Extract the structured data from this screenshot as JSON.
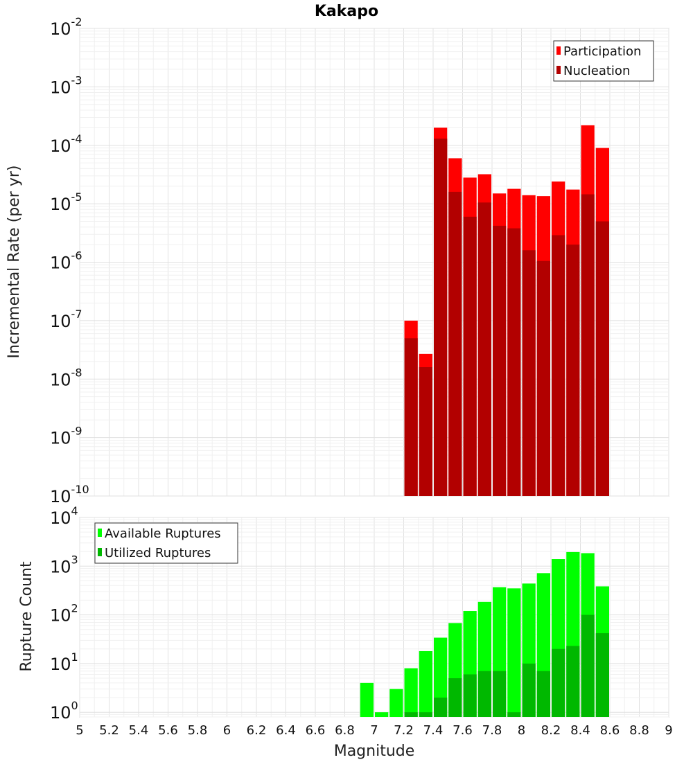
{
  "chart_data": [
    {
      "type": "bar",
      "title": "Kakapo",
      "ylabel": "Incremental Rate (per yr)",
      "xlabel": "",
      "y_scale": "log",
      "ylim": [
        1e-10,
        0.01
      ],
      "xlim": [
        5,
        9
      ],
      "grid": true,
      "legend_placement": "top-right",
      "bar_layout": "overlaid",
      "x": [
        7.25,
        7.35,
        7.45,
        7.55,
        7.65,
        7.75,
        7.85,
        7.95,
        8.05,
        8.15,
        8.25,
        8.35,
        8.45,
        8.55
      ],
      "series": [
        {
          "name": "Participation",
          "color": "#ff0000",
          "values": [
            1e-07,
            2.7e-08,
            0.0002,
            6e-05,
            2.8e-05,
            3.2e-05,
            1.5e-05,
            1.8e-05,
            1.4e-05,
            1.35e-05,
            2.4e-05,
            1.75e-05,
            0.00022,
            9e-05
          ]
        },
        {
          "name": "Nucleation",
          "color": "#b20000",
          "values": [
            5e-08,
            1.6e-08,
            0.00013,
            1.6e-05,
            6e-06,
            1.05e-05,
            4.2e-06,
            3.8e-06,
            1.6e-06,
            1.05e-06,
            2.9e-06,
            2e-06,
            1.45e-05,
            5e-06
          ]
        }
      ],
      "yticks": [
        {
          "base": "10",
          "exp": "-10"
        },
        {
          "base": "10",
          "exp": "-9"
        },
        {
          "base": "10",
          "exp": "-8"
        },
        {
          "base": "10",
          "exp": "-7"
        },
        {
          "base": "10",
          "exp": "-6"
        },
        {
          "base": "10",
          "exp": "-5"
        },
        {
          "base": "10",
          "exp": "-4"
        },
        {
          "base": "10",
          "exp": "-3"
        },
        {
          "base": "10",
          "exp": "-2"
        }
      ]
    },
    {
      "type": "bar",
      "title": "",
      "ylabel": "Rupture Count",
      "xlabel": "Magnitude",
      "y_scale": "log",
      "ylim": [
        0.8,
        10000
      ],
      "xlim": [
        5,
        9
      ],
      "grid": true,
      "legend_placement": "top-left",
      "bar_layout": "overlaid",
      "x": [
        6.95,
        7.05,
        7.15,
        7.25,
        7.35,
        7.45,
        7.55,
        7.65,
        7.75,
        7.85,
        7.95,
        8.05,
        8.15,
        8.25,
        8.35,
        8.45,
        8.55
      ],
      "series": [
        {
          "name": "Available Ruptures",
          "color": "#00ff00",
          "values": [
            4,
            1,
            3,
            8,
            18,
            34,
            68,
            120,
            185,
            370,
            350,
            440,
            720,
            1400,
            1950,
            1850,
            385
          ]
        },
        {
          "name": "Utilized Ruptures",
          "color": "#00b800",
          "values": [
            0,
            0,
            0,
            1,
            1,
            2,
            5,
            6,
            7,
            7,
            1,
            10,
            7,
            20,
            23,
            100,
            42
          ]
        }
      ],
      "xtick_labels": [
        "5",
        "5.2",
        "5.4",
        "5.6",
        "5.8",
        "6",
        "6.2",
        "6.4",
        "6.6",
        "6.8",
        "7",
        "7.2",
        "7.4",
        "7.6",
        "7.8",
        "8",
        "8.2",
        "8.4",
        "8.6",
        "8.8",
        "9"
      ],
      "yticks": [
        {
          "base": "10",
          "exp": "0"
        },
        {
          "base": "10",
          "exp": "1"
        },
        {
          "base": "10",
          "exp": "2"
        },
        {
          "base": "10",
          "exp": "3"
        },
        {
          "base": "10",
          "exp": "4"
        }
      ]
    }
  ]
}
